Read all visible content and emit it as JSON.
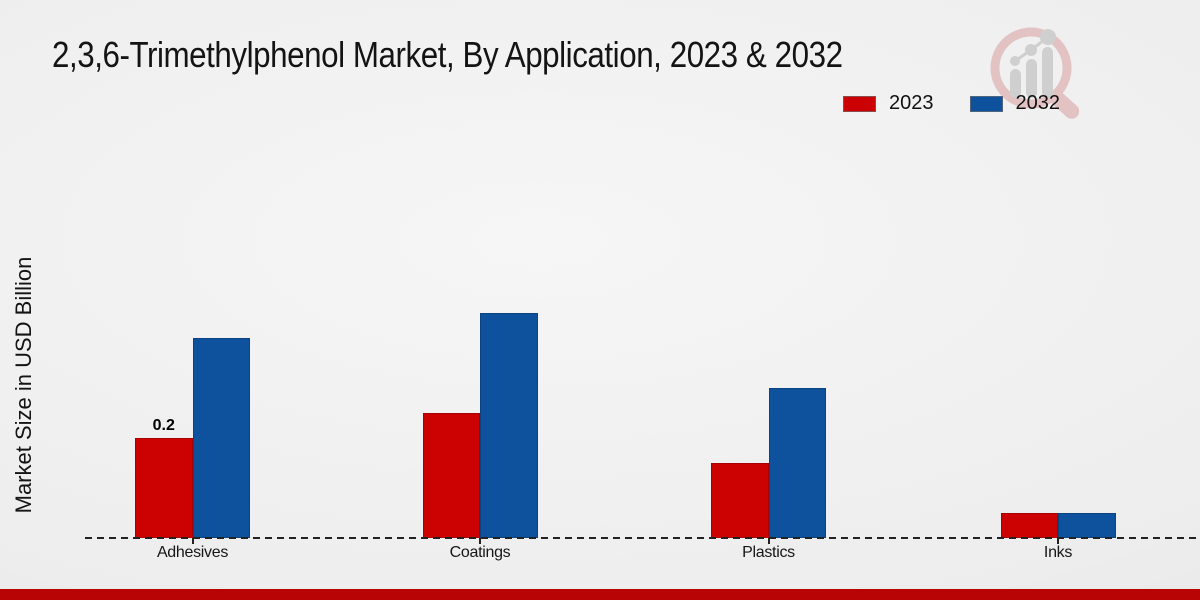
{
  "page": {
    "footer_color": "#b80404",
    "watermark_icon": "magnifier-growth-bars-logo"
  },
  "chart_data": {
    "type": "bar",
    "title": "2,3,6-Trimethylphenol Market, By Application, 2023 & 2032",
    "xlabel": "",
    "ylabel": "Market Size in USD Billion",
    "categories": [
      "Adhesives",
      "Coatings",
      "Plastics",
      "Inks"
    ],
    "series": [
      {
        "name": "2023",
        "color": "#cc0202",
        "values": [
          0.2,
          0.25,
          0.15,
          0.05
        ]
      },
      {
        "name": "2032",
        "color": "#0e529d",
        "values": [
          0.4,
          0.45,
          0.3,
          0.05
        ]
      }
    ],
    "bar_labels": [
      {
        "category": "Adhesives",
        "series": "2023",
        "text": "0.2"
      }
    ],
    "ylim": [
      0,
      0.5
    ],
    "grid": false,
    "y_ticks_visible": false,
    "legend_position": "top-right",
    "baseline_style": "dashed"
  }
}
